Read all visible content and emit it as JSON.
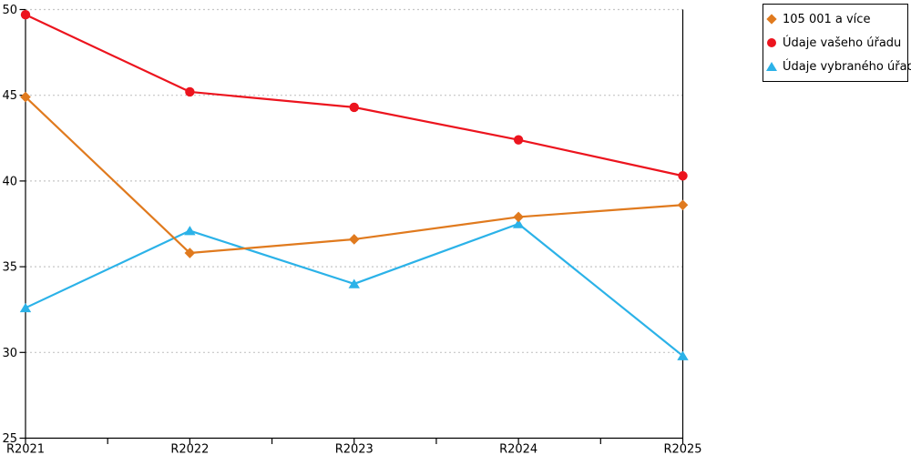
{
  "chart_data": {
    "type": "line",
    "title": "",
    "xlabel": "",
    "ylabel": "",
    "categories": [
      "R2021",
      "R2022",
      "R2023",
      "R2024",
      "R2025"
    ],
    "series": [
      {
        "name": "105 001 a více",
        "color": "#E07A1E",
        "marker": "diamond",
        "values": [
          44.9,
          35.8,
          36.6,
          37.9,
          38.6
        ]
      },
      {
        "name": "Údaje vašeho úřadu",
        "color": "#EC141E",
        "marker": "circle",
        "values": [
          49.7,
          45.2,
          44.3,
          42.4,
          40.3
        ]
      },
      {
        "name": "Údaje vybraného úřadu",
        "color": "#2BB2E8",
        "marker": "triangle",
        "values": [
          32.6,
          37.1,
          34.0,
          37.5,
          29.8
        ]
      }
    ],
    "ylim": [
      25,
      50
    ],
    "yticks": [
      25,
      30,
      35,
      40,
      45,
      50
    ],
    "grid_values": [
      30,
      35,
      40,
      45,
      50
    ],
    "grid": "horizontal dashed",
    "x_minor_ticks": true,
    "legend_position": "top-right outside plot"
  },
  "colors": {
    "axis": "#000000",
    "grid": "#c6c6c6",
    "background": "#ffffff",
    "legend_border": "#000000"
  }
}
